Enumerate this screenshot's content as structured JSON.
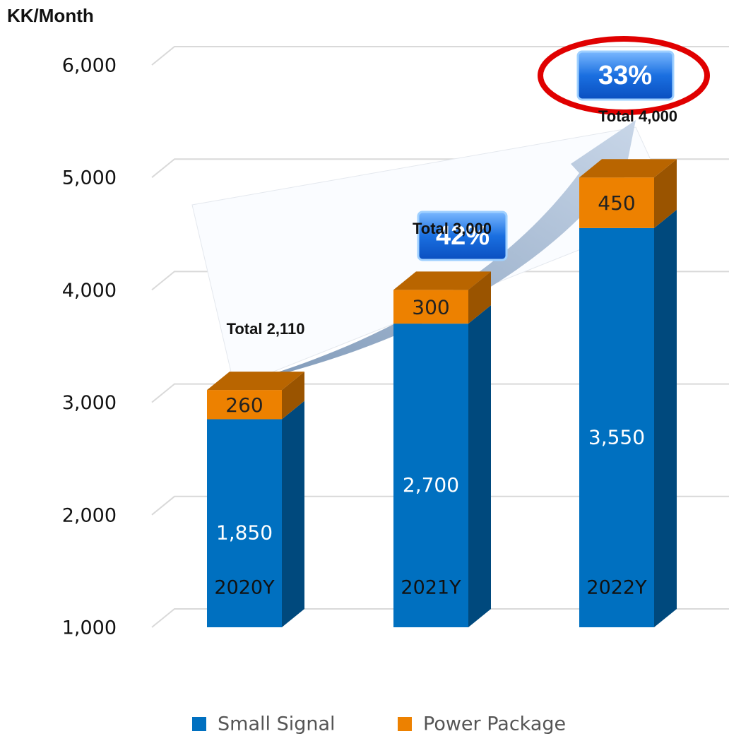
{
  "chart_data": {
    "type": "bar3d_stacked",
    "y_label": "KK/Month",
    "categories": [
      "2020Y",
      "2021Y",
      "2022Y"
    ],
    "series": [
      {
        "name": "Small Signal",
        "color": "#0070c0",
        "values": [
          1850,
          2700,
          3550
        ],
        "value_labels": [
          "1,850",
          "2,700",
          "3,550"
        ]
      },
      {
        "name": "Power Package",
        "color": "#ed8100",
        "values": [
          260,
          300,
          450
        ]
      }
    ],
    "totals": [
      "Total 2,110",
      "Total 3,000",
      "Total 4,000"
    ],
    "growth": [
      "42%",
      "33%"
    ],
    "ylim": [
      1000,
      6000
    ],
    "yticks": [
      {
        "value": 1000,
        "label": "1,000"
      },
      {
        "value": 2000,
        "label": "2,000"
      },
      {
        "value": 3000,
        "label": "3,000"
      },
      {
        "value": 4000,
        "label": "4,000"
      },
      {
        "value": 5000,
        "label": "5,000"
      },
      {
        "value": 6000,
        "label": "6,000"
      }
    ],
    "grid": true
  }
}
